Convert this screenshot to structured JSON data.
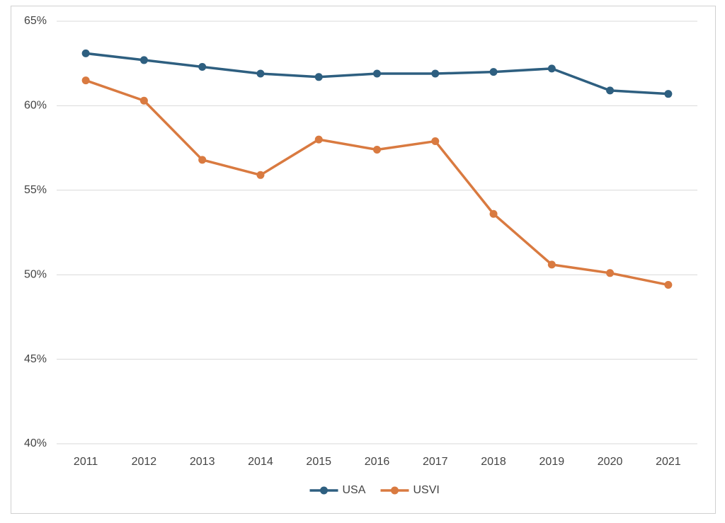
{
  "chart_data": {
    "type": "line",
    "categories": [
      "2011",
      "2012",
      "2013",
      "2014",
      "2015",
      "2016",
      "2017",
      "2018",
      "2019",
      "2020",
      "2021"
    ],
    "series": [
      {
        "name": "USA",
        "color": "#2e5f80",
        "values": [
          63.1,
          62.7,
          62.3,
          61.9,
          61.7,
          61.9,
          61.9,
          62.0,
          62.2,
          60.9,
          60.7
        ]
      },
      {
        "name": "USVI",
        "color": "#d97a40",
        "values": [
          61.5,
          60.3,
          56.8,
          55.9,
          58.0,
          57.4,
          57.9,
          53.6,
          50.6,
          50.1,
          49.4
        ]
      }
    ],
    "ylim": [
      40,
      65
    ],
    "yticks": [
      {
        "value": 40,
        "label": "40%"
      },
      {
        "value": 45,
        "label": "45%"
      },
      {
        "value": 50,
        "label": "50%"
      },
      {
        "value": 55,
        "label": "55%"
      },
      {
        "value": 60,
        "label": "60%"
      },
      {
        "value": 65,
        "label": "65%"
      }
    ],
    "grid": true,
    "legend": "bottom"
  }
}
